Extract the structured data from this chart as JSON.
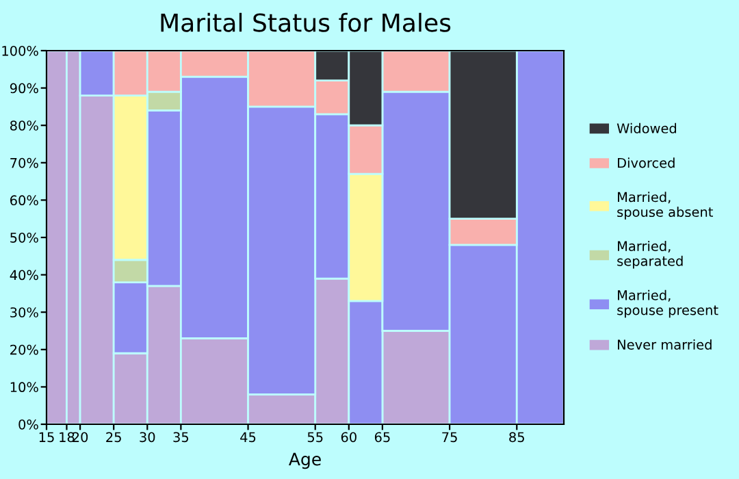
{
  "chart_data": {
    "type": "bar",
    "stacked": true,
    "title": "Marital Status for Males",
    "xlabel": "Age",
    "x": [
      16.5,
      19,
      22.5,
      27.5,
      32.5,
      40,
      50,
      57.5,
      62.5,
      70,
      80,
      88.5
    ],
    "xlim": [
      15,
      92
    ],
    "xticks": [
      15,
      18,
      20,
      25,
      30,
      35,
      45,
      55,
      60,
      65,
      75,
      85
    ],
    "ylim": [
      0,
      100
    ],
    "yticks": [
      {
        "value": 0,
        "label": "0%"
      },
      {
        "value": 10,
        "label": "10%"
      },
      {
        "value": 20,
        "label": "20%"
      },
      {
        "value": 30,
        "label": "30%"
      },
      {
        "value": 40,
        "label": "40%"
      },
      {
        "value": 50,
        "label": "50%"
      },
      {
        "value": 60,
        "label": "60%"
      },
      {
        "value": 70,
        "label": "70%"
      },
      {
        "value": 80,
        "label": "80%"
      },
      {
        "value": 90,
        "label": "90%"
      },
      {
        "value": 100,
        "label": "100%"
      }
    ],
    "grid": false,
    "legend": "right",
    "series": [
      {
        "name": "Never married",
        "color": "#bfa8d8",
        "values": [
          100,
          100,
          88,
          19,
          37,
          23,
          8,
          39,
          0,
          25,
          0,
          0
        ]
      },
      {
        "name": "Married,\nspouse present",
        "color": "#8e8ef2",
        "values": [
          0,
          0,
          12,
          19,
          47,
          70,
          77,
          44,
          33,
          64,
          48,
          100
        ]
      },
      {
        "name": "Married,\nseparated",
        "color": "#c2d9a6",
        "values": [
          0,
          0,
          0,
          6,
          5,
          0,
          0,
          0,
          0,
          0,
          0,
          0
        ]
      },
      {
        "name": "Married,\nspouse absent",
        "color": "#fff899",
        "values": [
          0,
          0,
          0,
          44,
          0,
          0,
          0,
          0,
          34,
          0,
          0,
          0
        ]
      },
      {
        "name": "Divorced",
        "color": "#f9b0ad",
        "values": [
          0,
          0,
          0,
          12,
          11,
          7,
          15,
          9,
          13,
          11,
          7,
          0
        ]
      },
      {
        "name": "Widowed",
        "color": "#35363b",
        "values": [
          0,
          0,
          0,
          0,
          0,
          0,
          0,
          8,
          20,
          0,
          45,
          0
        ]
      }
    ]
  }
}
